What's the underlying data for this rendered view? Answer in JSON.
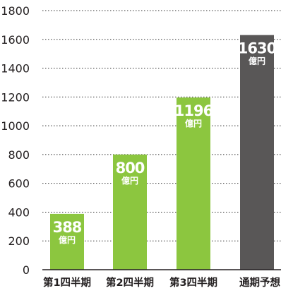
{
  "chart_data": {
    "type": "bar",
    "categories": [
      "第1四半期",
      "第2四半期",
      "第3四半期",
      "通期予想"
    ],
    "values": [
      388,
      800,
      1196,
      1630
    ],
    "value_labels": [
      "388",
      "800",
      "1196",
      "1630"
    ],
    "unit_label": "億円",
    "bar_colors": [
      "#8cc63f",
      "#8cc63f",
      "#8cc63f",
      "#595757"
    ],
    "ylim": [
      0,
      1800
    ],
    "yticks": [
      "0",
      "200",
      "400",
      "600",
      "800",
      "1000",
      "1200",
      "1400",
      "1600",
      "1800"
    ],
    "grid": true,
    "title": "",
    "xlabel": "",
    "ylabel": ""
  }
}
